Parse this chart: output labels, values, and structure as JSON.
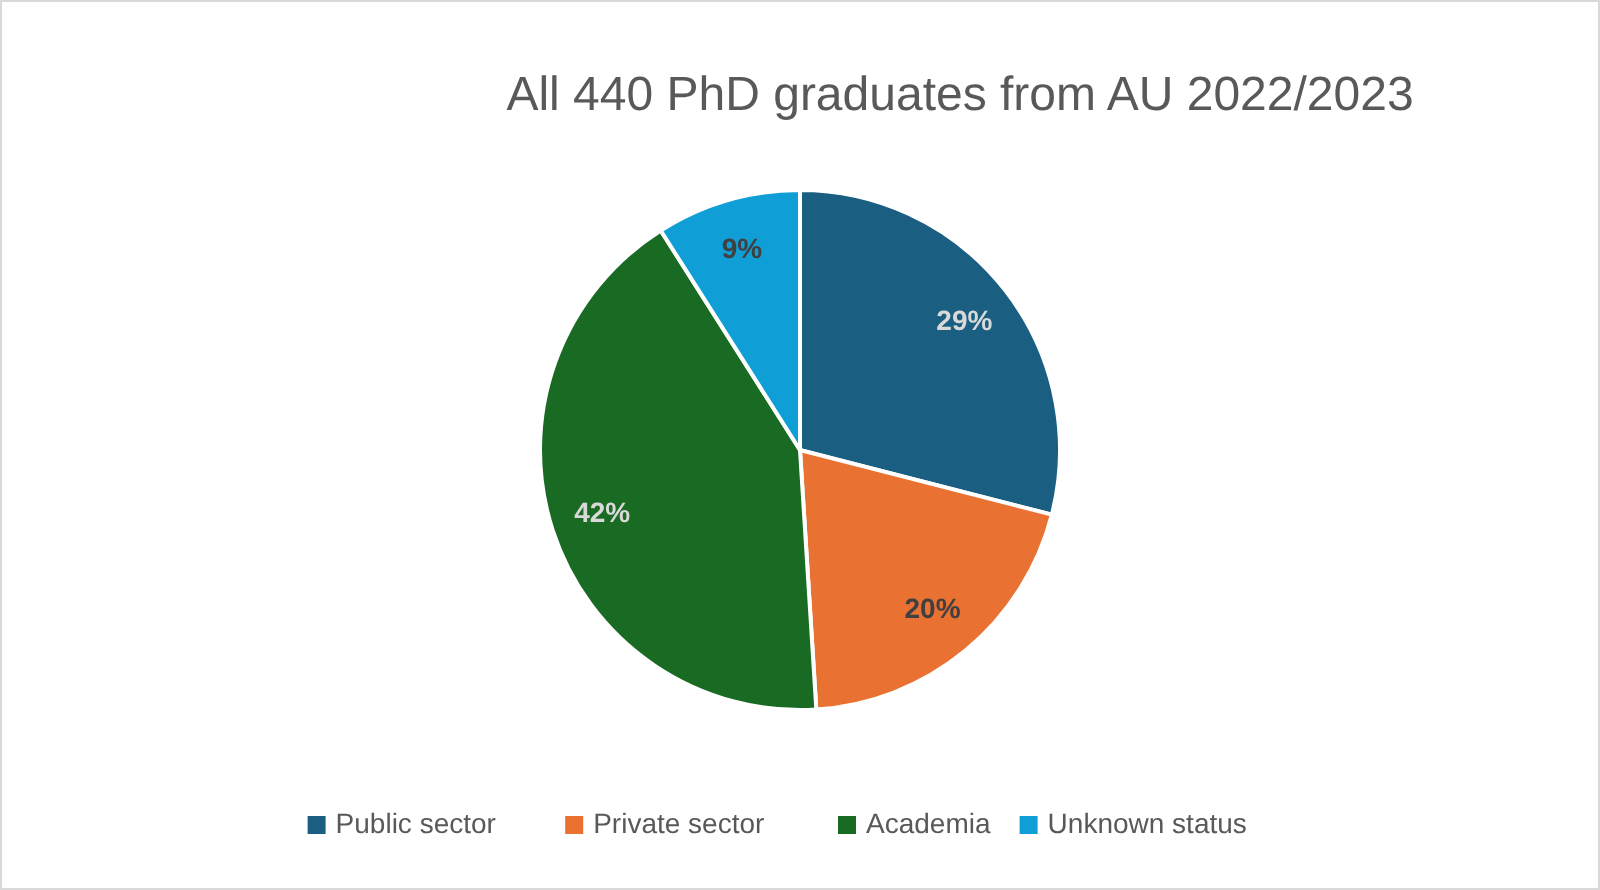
{
  "chart_data": {
    "type": "pie",
    "title": "All 440 PhD graduates from AU 2022/2023",
    "categories": [
      "Public sector",
      "Private sector",
      "Academia",
      "Unknown status"
    ],
    "values": [
      29,
      20,
      42,
      9
    ],
    "colors": [
      "#1a5e82",
      "#e97132",
      "#196b24",
      "#0f9ed5"
    ],
    "value_labels": [
      "29%",
      "20%",
      "42%",
      "9%"
    ],
    "legend": "bottom"
  }
}
